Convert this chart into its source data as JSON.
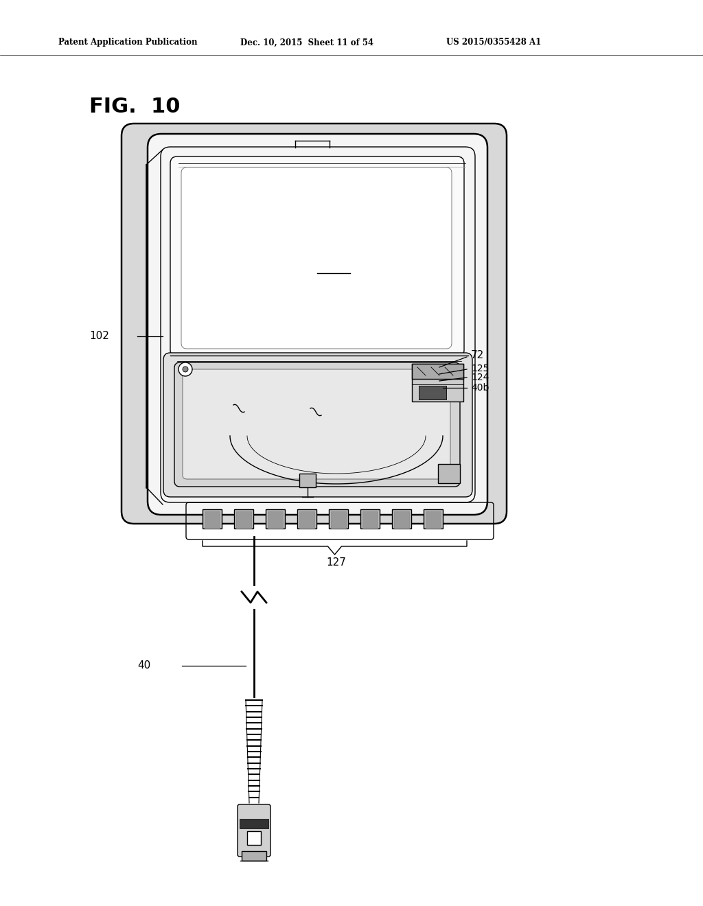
{
  "title": "FIG.  10",
  "header_left": "Patent Application Publication",
  "header_mid": "Dec. 10, 2015  Sheet 11 of 54",
  "header_right": "US 2015/0355428 A1",
  "bg_color": "#ffffff",
  "fig_label": "FIG.  10",
  "device_color": "#f5f5f5",
  "shadow_color": "#d8d8d8",
  "tray_color": "#e0e0e0",
  "dark_color": "#404040",
  "line_color": "#000000",
  "lw_main": 1.8,
  "lw_detail": 1.0,
  "lw_thin": 0.6
}
